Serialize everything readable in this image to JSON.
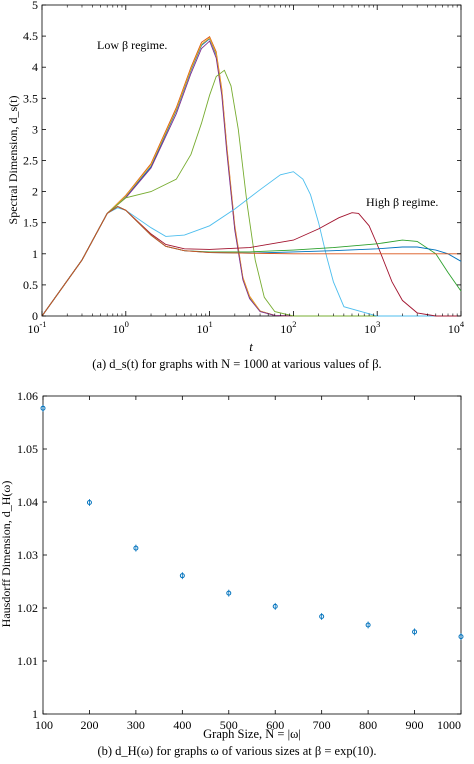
{
  "captions": {
    "a": "(a) d_s(t) for graphs with N = 1000 at various values of β.",
    "b": "(b) d_H(ω) for graphs ω of various sizes at β = exp(10)."
  },
  "chart_data": [
    {
      "type": "line",
      "xscale": "log",
      "xlim": [
        0.1,
        10000
      ],
      "ylim": [
        0,
        5
      ],
      "xlabel": "t",
      "ylabel": "Spectral Dimension, d_s(t)",
      "xtick_labels": [
        "10^-1",
        "10^0",
        "10^1",
        "10^2",
        "10^3",
        "10^4"
      ],
      "ytick_labels": [
        "0",
        "0.5",
        "1",
        "1.5",
        "2",
        "2.5",
        "3",
        "3.5",
        "4",
        "4.5",
        "5"
      ],
      "annotations": [
        "Low β regime.",
        "High β regime."
      ],
      "grid": false,
      "colors": [
        "#0072BD",
        "#D95319",
        "#EDB120",
        "#7E2F8E",
        "#77AC30",
        "#4DBEEE",
        "#A2142F",
        "#2CA02C"
      ],
      "series": [
        {
          "x": [
            0.1,
            0.3,
            0.6,
            1,
            2,
            4,
            6,
            8,
            10,
            12,
            14,
            16,
            20,
            25,
            30,
            40,
            60,
            100,
            1000,
            10000
          ],
          "y": [
            0,
            0.9,
            1.65,
            1.92,
            2.4,
            3.3,
            3.95,
            4.35,
            4.46,
            4.2,
            3.6,
            2.7,
            1.4,
            0.6,
            0.3,
            0.08,
            0.01,
            0,
            0,
            0
          ]
        },
        {
          "x": [
            0.1,
            0.3,
            0.6,
            1,
            2,
            4,
            6,
            8,
            10,
            12,
            14,
            16,
            20,
            25,
            30,
            40,
            60,
            100,
            1000,
            10000
          ],
          "y": [
            0,
            0.9,
            1.65,
            1.94,
            2.45,
            3.35,
            4.0,
            4.4,
            4.49,
            4.25,
            3.65,
            2.75,
            1.45,
            0.62,
            0.32,
            0.08,
            0.01,
            0,
            0,
            0
          ]
        },
        {
          "x": [
            0.1,
            0.3,
            0.6,
            1,
            2,
            4,
            6,
            8,
            10,
            12,
            14,
            16,
            20,
            25,
            30,
            40,
            60,
            100,
            1000,
            10000
          ],
          "y": [
            0,
            0.9,
            1.65,
            1.93,
            2.43,
            3.32,
            3.97,
            4.37,
            4.47,
            4.22,
            3.62,
            2.72,
            1.42,
            0.61,
            0.31,
            0.08,
            0.01,
            0,
            0,
            0
          ]
        },
        {
          "x": [
            0.1,
            0.3,
            0.6,
            1,
            2,
            4,
            6,
            8,
            10,
            12,
            14,
            16,
            20,
            25,
            30,
            40,
            60,
            100,
            1000,
            10000
          ],
          "y": [
            0,
            0.9,
            1.65,
            1.9,
            2.38,
            3.25,
            3.9,
            4.3,
            4.42,
            4.15,
            3.55,
            2.65,
            1.38,
            0.58,
            0.28,
            0.07,
            0.01,
            0,
            0,
            0
          ]
        },
        {
          "x": [
            0.1,
            0.3,
            0.6,
            1,
            2,
            4,
            6,
            8,
            10,
            12,
            15,
            18,
            22,
            28,
            35,
            45,
            60,
            100,
            10000
          ],
          "y": [
            0,
            0.9,
            1.65,
            1.9,
            2.0,
            2.2,
            2.6,
            3.1,
            3.55,
            3.85,
            3.95,
            3.7,
            3.0,
            1.8,
            0.9,
            0.3,
            0.07,
            0,
            0
          ]
        },
        {
          "x": [
            0.1,
            0.3,
            0.6,
            0.8,
            1,
            2,
            3,
            5,
            10,
            20,
            40,
            70,
            100,
            130,
            160,
            200,
            250,
            300,
            400,
            1000,
            10000
          ],
          "y": [
            0,
            0.9,
            1.65,
            1.74,
            1.7,
            1.42,
            1.28,
            1.3,
            1.45,
            1.72,
            2.03,
            2.27,
            2.32,
            2.2,
            1.95,
            1.5,
            0.95,
            0.55,
            0.15,
            0,
            0
          ]
        },
        {
          "x": [
            0.1,
            0.3,
            0.6,
            0.8,
            1,
            2,
            3,
            5,
            10,
            30,
            100,
            200,
            350,
            500,
            600,
            800,
            1000,
            1500,
            2000,
            3000,
            5000,
            10000
          ],
          "y": [
            0,
            0.9,
            1.65,
            1.76,
            1.7,
            1.32,
            1.15,
            1.08,
            1.07,
            1.1,
            1.22,
            1.4,
            1.58,
            1.66,
            1.65,
            1.45,
            1.15,
            0.55,
            0.25,
            0.05,
            0,
            0
          ]
        },
        {
          "x": [
            0.1,
            0.3,
            0.6,
            0.8,
            1,
            2,
            3,
            5,
            10,
            30,
            100,
            300,
            1000,
            2000,
            3000,
            5000,
            7000,
            10000
          ],
          "y": [
            0,
            0.9,
            1.65,
            1.76,
            1.7,
            1.3,
            1.12,
            1.05,
            1.03,
            1.03,
            1.06,
            1.1,
            1.16,
            1.22,
            1.2,
            1.0,
            0.7,
            0.4
          ]
        },
        {
          "x": [
            0.1,
            0.3,
            0.6,
            0.8,
            1,
            2,
            3,
            5,
            10,
            30,
            100,
            300,
            1000,
            2000,
            3000,
            5000,
            7000,
            10000
          ],
          "y": [
            0,
            0.9,
            1.65,
            1.76,
            1.7,
            1.3,
            1.12,
            1.05,
            1.02,
            1.01,
            1.03,
            1.05,
            1.08,
            1.11,
            1.11,
            1.06,
            1.0,
            0.88
          ]
        },
        {
          "x": [
            0.1,
            0.3,
            0.6,
            0.8,
            1,
            2,
            3,
            5,
            10,
            30,
            100,
            300,
            1000,
            3000,
            10000
          ],
          "y": [
            0,
            0.9,
            1.65,
            1.76,
            1.7,
            1.3,
            1.12,
            1.05,
            1.02,
            1.01,
            1.0,
            1.0,
            1.0,
            1.0,
            1.0
          ]
        }
      ]
    },
    {
      "type": "scatter",
      "x": [
        100,
        200,
        300,
        400,
        500,
        600,
        700,
        800,
        900,
        1000
      ],
      "y": [
        1.0577,
        1.0399,
        1.0313,
        1.0261,
        1.0228,
        1.0203,
        1.0184,
        1.0168,
        1.0155,
        1.0146
      ],
      "xlim": [
        100,
        1000
      ],
      "ylim": [
        1,
        1.06
      ],
      "xlabel": "Graph Size, N = |ω|",
      "ylabel": "Hausdorff Dimension, d_H(ω)",
      "xtick_labels": [
        "100",
        "200",
        "300",
        "400",
        "500",
        "600",
        "700",
        "800",
        "900",
        "1000"
      ],
      "ytick_labels": [
        "1",
        "1.01",
        "1.02",
        "1.03",
        "1.04",
        "1.05",
        "1.06"
      ],
      "grid": false,
      "marker_color": "#0072BD"
    }
  ]
}
